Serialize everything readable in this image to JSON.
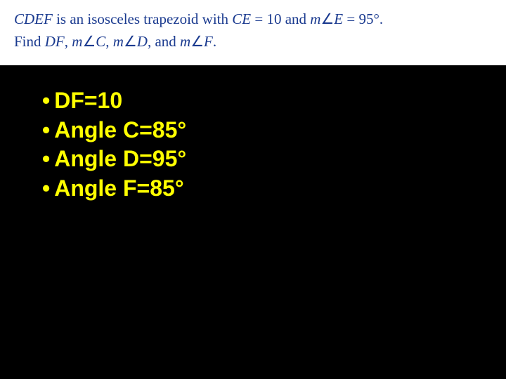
{
  "problem": {
    "line1_part1": "CDEF",
    "line1_part2": " is an isosceles trapezoid with ",
    "line1_part3": "CE",
    "line1_part4": " =  10 and ",
    "line1_part5": "m",
    "line1_angle": "∠",
    "line1_part6": "E",
    "line1_part7": " =  95°.",
    "line2_part1": "Find ",
    "line2_part2": "DF",
    "line2_part3": ", ",
    "line2_part4": "m",
    "line2_angle1": "∠",
    "line2_part5": "C",
    "line2_part6": ", ",
    "line2_part7": "m",
    "line2_angle2": "∠",
    "line2_part8": "D",
    "line2_part9": ", and ",
    "line2_part10": "m",
    "line2_angle3": "∠",
    "line2_part11": "F",
    "line2_part12": "."
  },
  "solution": {
    "items": [
      "DF=10",
      "Angle C=85°",
      "Angle D=95°",
      "Angle F=85°"
    ]
  },
  "colors": {
    "problem_text": "#1a3a8f",
    "solution_text": "#ffff00",
    "problem_bg": "#ffffff",
    "main_bg": "#000000"
  }
}
